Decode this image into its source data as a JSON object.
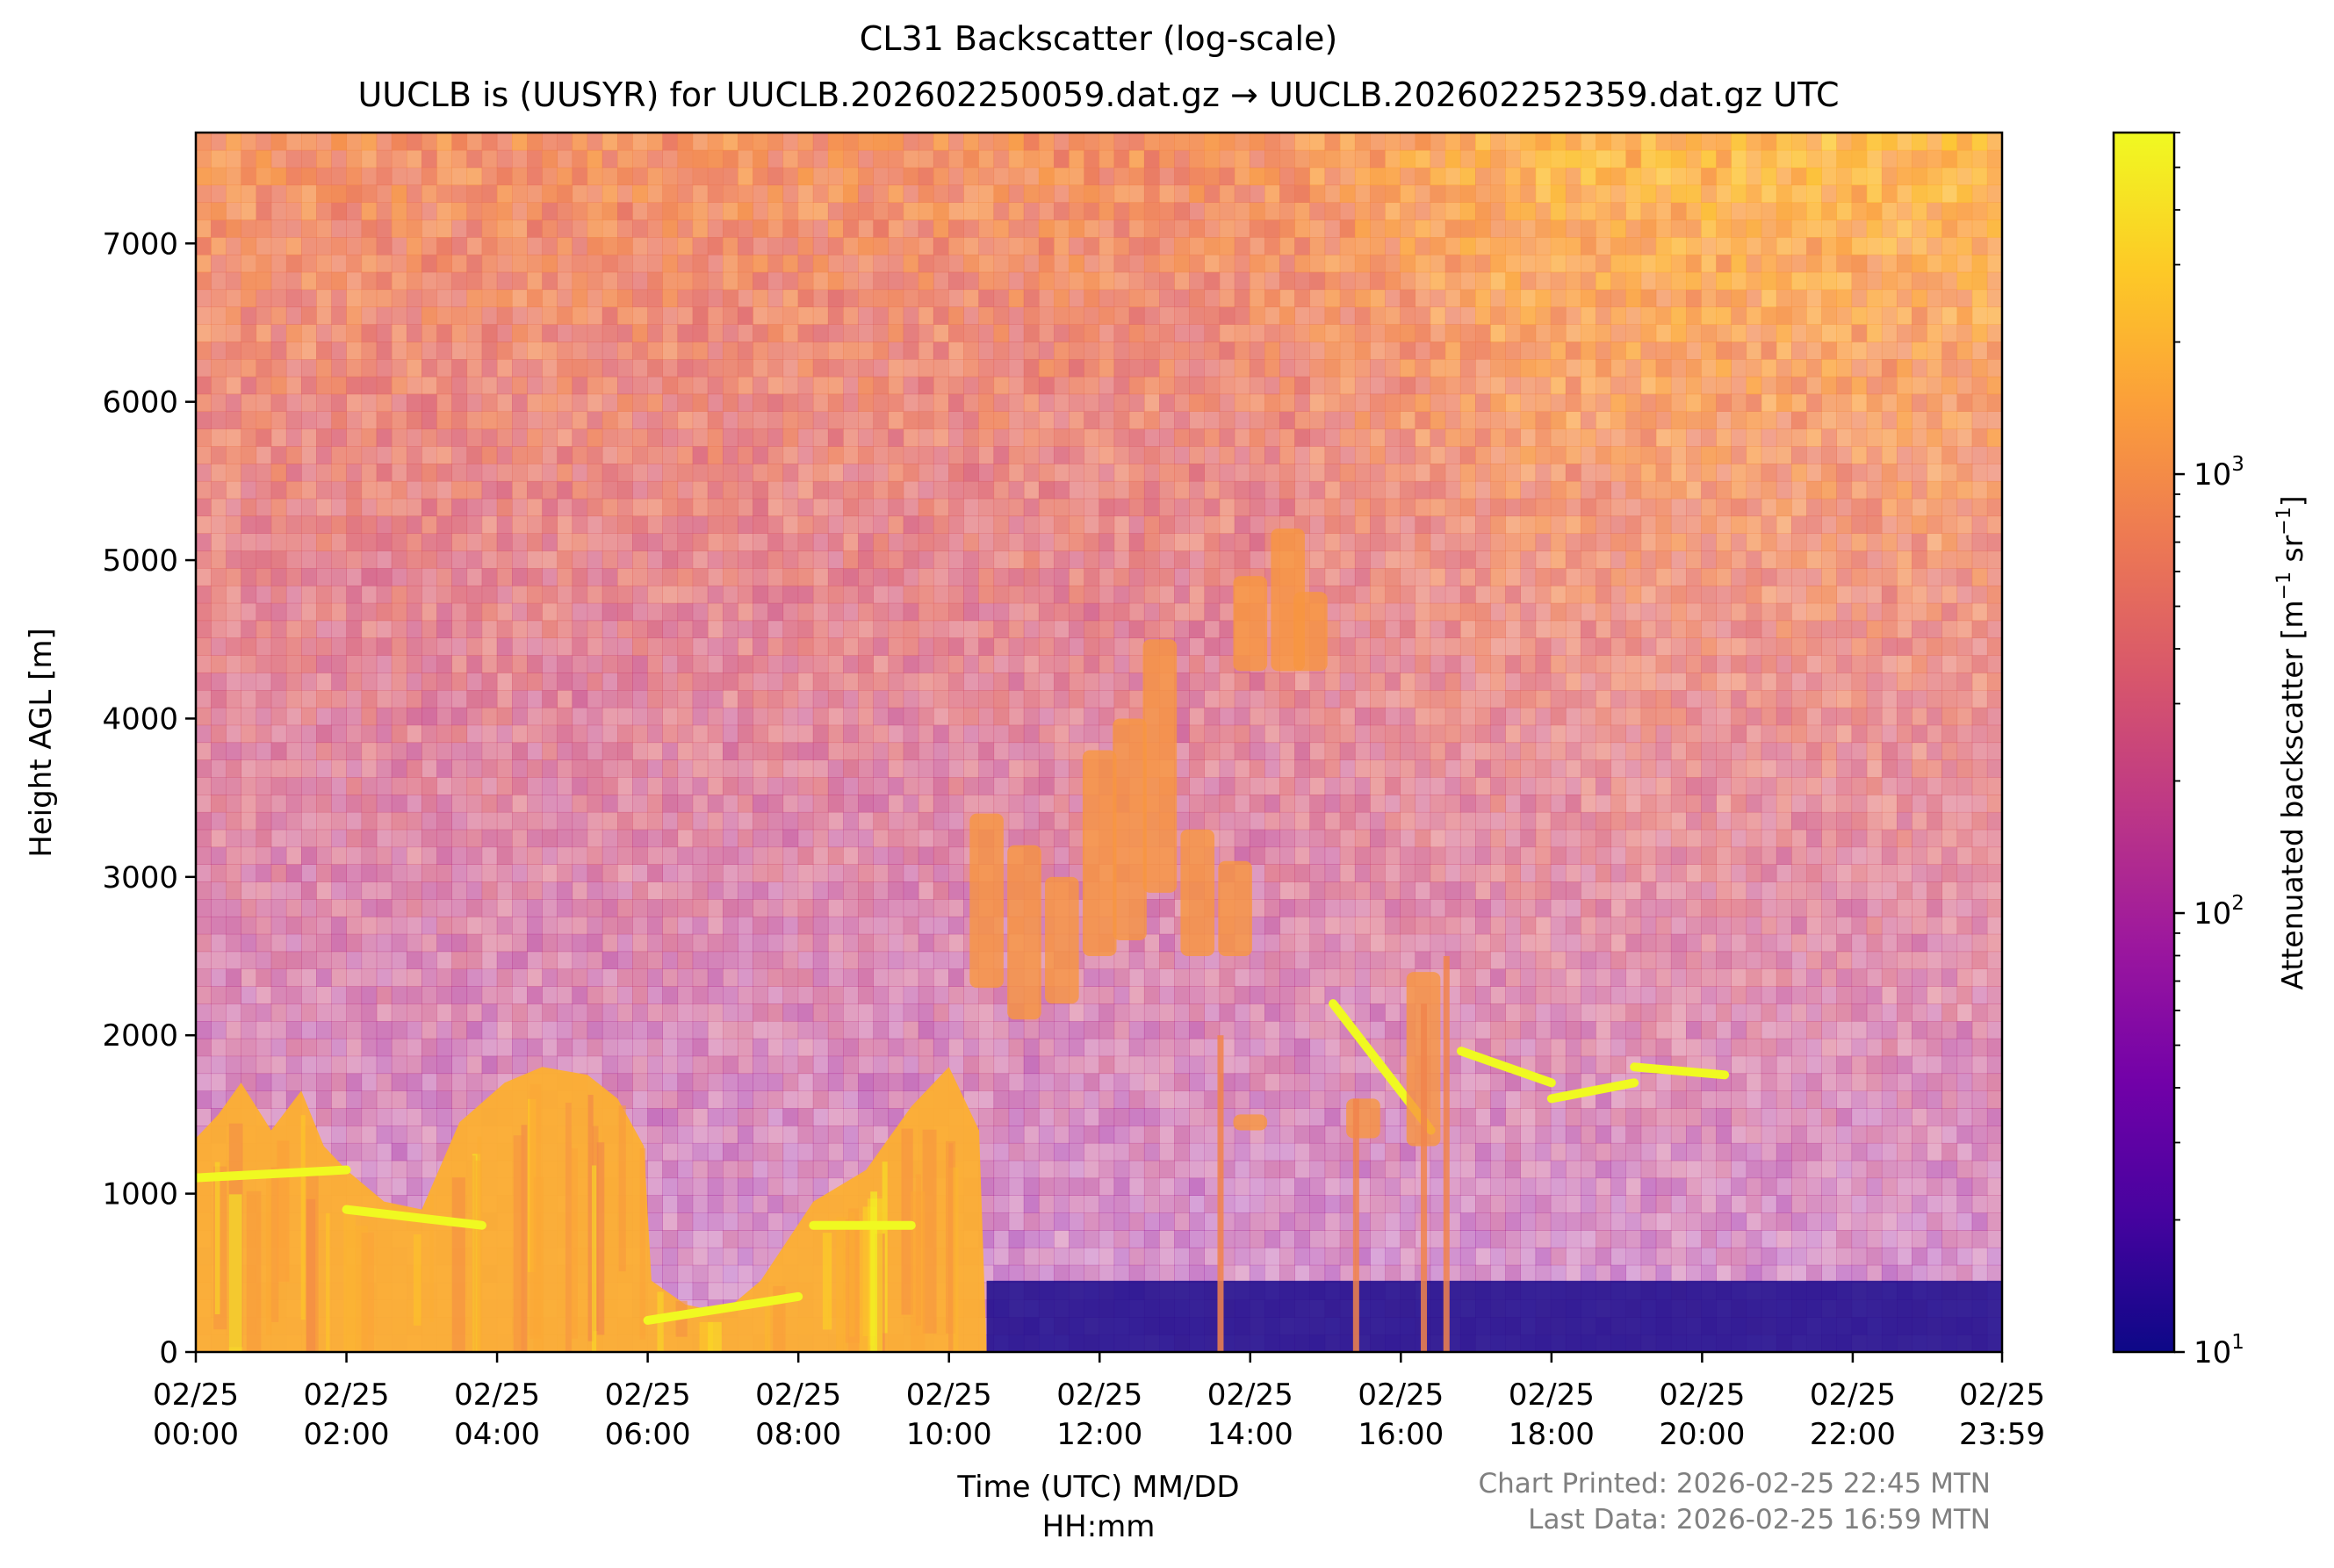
{
  "chart_data": {
    "type": "heatmap",
    "title": "CL31 Backscatter (log-scale)",
    "subtitle": "UUCLB is (UUSYR) for UUCLB.202602250059.dat.gz → UUCLB.202602252359.dat.gz UTC",
    "xlabel_line1": "Time (UTC) MM/DD",
    "xlabel_line2": "HH:mm",
    "ylabel": "Height AGL [m]",
    "colorbar_label_prefix": "Attenuated backscatter [m",
    "colorbar_label_mid": " sr",
    "colorbar_label_suffix": "]",
    "colorbar_label_exp": "−1",
    "colormap": "plasma",
    "colormap_stops": [
      "#0d0887",
      "#46039f",
      "#7201a8",
      "#9c179e",
      "#bd3786",
      "#d8576b",
      "#ed7953",
      "#fb9f3a",
      "#fdca26",
      "#f0f921"
    ],
    "colorscale": "log",
    "clim": [
      10,
      6000
    ],
    "xlim_hours": [
      0,
      23.983
    ],
    "ylim": [
      0,
      7700
    ],
    "x_ticks": [
      {
        "hour": 0,
        "date": "02/25",
        "time": "00:00"
      },
      {
        "hour": 2,
        "date": "02/25",
        "time": "02:00"
      },
      {
        "hour": 4,
        "date": "02/25",
        "time": "04:00"
      },
      {
        "hour": 6,
        "date": "02/25",
        "time": "06:00"
      },
      {
        "hour": 8,
        "date": "02/25",
        "time": "08:00"
      },
      {
        "hour": 10,
        "date": "02/25",
        "time": "10:00"
      },
      {
        "hour": 12,
        "date": "02/25",
        "time": "12:00"
      },
      {
        "hour": 14,
        "date": "02/25",
        "time": "14:00"
      },
      {
        "hour": 16,
        "date": "02/25",
        "time": "16:00"
      },
      {
        "hour": 18,
        "date": "02/25",
        "time": "18:00"
      },
      {
        "hour": 20,
        "date": "02/25",
        "time": "20:00"
      },
      {
        "hour": 22,
        "date": "02/25",
        "time": "22:00"
      },
      {
        "hour": 23.983,
        "date": "02/25",
        "time": "23:59"
      }
    ],
    "y_ticks": [
      0,
      1000,
      2000,
      3000,
      4000,
      5000,
      6000,
      7000
    ],
    "colorbar_ticks": [
      {
        "value": 10,
        "base": "10",
        "exp": "1"
      },
      {
        "value": 100,
        "base": "10",
        "exp": "2"
      },
      {
        "value": 1000,
        "base": "10",
        "exp": "3"
      }
    ],
    "footer_printed": "Chart Printed: 2026-02-25 22:45 MTN",
    "footer_last_data": "Last Data: 2026-02-25 16:59 MTN",
    "features": {
      "boundary_layer_top_m": [
        {
          "hour": 0.0,
          "top": 1350
        },
        {
          "hour": 0.3,
          "top": 1500
        },
        {
          "hour": 0.6,
          "top": 1700
        },
        {
          "hour": 1.0,
          "top": 1400
        },
        {
          "hour": 1.4,
          "top": 1650
        },
        {
          "hour": 1.7,
          "top": 1300
        },
        {
          "hour": 2.0,
          "top": 1150
        },
        {
          "hour": 2.5,
          "top": 950
        },
        {
          "hour": 3.0,
          "top": 900
        },
        {
          "hour": 3.5,
          "top": 1450
        },
        {
          "hour": 4.1,
          "top": 1700
        },
        {
          "hour": 4.6,
          "top": 1800
        },
        {
          "hour": 5.2,
          "top": 1750
        },
        {
          "hour": 5.6,
          "top": 1600
        },
        {
          "hour": 5.95,
          "top": 1300
        },
        {
          "hour": 6.05,
          "top": 450
        },
        {
          "hour": 6.5,
          "top": 300
        },
        {
          "hour": 7.0,
          "top": 250
        },
        {
          "hour": 7.5,
          "top": 450
        },
        {
          "hour": 8.2,
          "top": 950
        },
        {
          "hour": 8.9,
          "top": 1150
        },
        {
          "hour": 9.5,
          "top": 1550
        },
        {
          "hour": 10.0,
          "top": 1800
        },
        {
          "hour": 10.4,
          "top": 1400
        },
        {
          "hour": 10.5,
          "top": 0
        }
      ],
      "bright_segments_m": [
        {
          "hour_start": 0.0,
          "hour_end": 2.0,
          "y_start": 1100,
          "y_end": 1150
        },
        {
          "hour_start": 2.0,
          "hour_end": 3.8,
          "y_start": 900,
          "y_end": 800
        },
        {
          "hour_start": 6.0,
          "hour_end": 8.0,
          "y_start": 200,
          "y_end": 350
        },
        {
          "hour_start": 8.2,
          "hour_end": 9.5,
          "y_start": 800,
          "y_end": 800
        },
        {
          "hour_start": 16.8,
          "hour_end": 18.0,
          "y_start": 1900,
          "y_end": 1700
        },
        {
          "hour_start": 18.0,
          "hour_end": 19.1,
          "y_start": 1600,
          "y_end": 1700
        },
        {
          "hour_start": 19.1,
          "hour_end": 20.3,
          "y_start": 1800,
          "y_end": 1750
        },
        {
          "hour_start": 15.1,
          "hour_end": 16.4,
          "y_start": 2200,
          "y_end": 1400
        }
      ],
      "cloud_patches_m": [
        {
          "hour": 10.5,
          "y_low": 2300,
          "y_high": 3400
        },
        {
          "hour": 11.0,
          "y_low": 2100,
          "y_high": 3200
        },
        {
          "hour": 11.5,
          "y_low": 2200,
          "y_high": 3000
        },
        {
          "hour": 12.0,
          "y_low": 2500,
          "y_high": 3800
        },
        {
          "hour": 12.4,
          "y_low": 2600,
          "y_high": 4000
        },
        {
          "hour": 12.8,
          "y_low": 2900,
          "y_high": 4500
        },
        {
          "hour": 13.3,
          "y_low": 2500,
          "y_high": 3300
        },
        {
          "hour": 13.8,
          "y_low": 2500,
          "y_high": 3100
        },
        {
          "hour": 14.0,
          "y_low": 4300,
          "y_high": 4900
        },
        {
          "hour": 14.5,
          "y_low": 4300,
          "y_high": 5200
        },
        {
          "hour": 14.8,
          "y_low": 4300,
          "y_high": 4800
        },
        {
          "hour": 14.0,
          "y_low": 1400,
          "y_high": 1500
        },
        {
          "hour": 15.5,
          "y_low": 1350,
          "y_high": 1600
        },
        {
          "hour": 16.3,
          "y_low": 1300,
          "y_high": 2400
        }
      ],
      "precip_streaks": [
        {
          "hour": 13.6,
          "y_high": 2000
        },
        {
          "hour": 15.4,
          "y_high": 1600
        },
        {
          "hour": 16.3,
          "y_high": 2200
        },
        {
          "hour": 16.6,
          "y_high": 2500
        }
      ]
    }
  }
}
